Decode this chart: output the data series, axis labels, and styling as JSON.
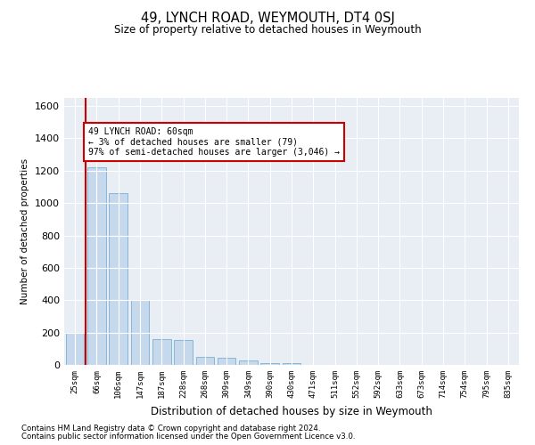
{
  "title": "49, LYNCH ROAD, WEYMOUTH, DT4 0SJ",
  "subtitle": "Size of property relative to detached houses in Weymouth",
  "xlabel": "Distribution of detached houses by size in Weymouth",
  "ylabel": "Number of detached properties",
  "footnote1": "Contains HM Land Registry data © Crown copyright and database right 2024.",
  "footnote2": "Contains public sector information licensed under the Open Government Licence v3.0.",
  "annotation_line1": "49 LYNCH ROAD: 60sqm",
  "annotation_line2": "← 3% of detached houses are smaller (79)",
  "annotation_line3": "97% of semi-detached houses are larger (3,046) →",
  "bar_color": "#c6d9ec",
  "bar_edge_color": "#7bafd4",
  "red_line_color": "#cc0000",
  "annotation_box_edgecolor": "#cc0000",
  "background_color": "#e8eef4",
  "categories": [
    "25sqm",
    "66sqm",
    "106sqm",
    "147sqm",
    "187sqm",
    "228sqm",
    "268sqm",
    "309sqm",
    "349sqm",
    "390sqm",
    "430sqm",
    "471sqm",
    "511sqm",
    "552sqm",
    "592sqm",
    "633sqm",
    "673sqm",
    "714sqm",
    "754sqm",
    "795sqm",
    "835sqm"
  ],
  "bar_heights": [
    200,
    1220,
    1060,
    400,
    160,
    155,
    50,
    45,
    25,
    12,
    10,
    0,
    0,
    0,
    0,
    0,
    0,
    0,
    0,
    0,
    0
  ],
  "ylim": [
    0,
    1650
  ],
  "yticks": [
    0,
    200,
    400,
    600,
    800,
    1000,
    1200,
    1400,
    1600
  ],
  "red_line_x": 0.5
}
